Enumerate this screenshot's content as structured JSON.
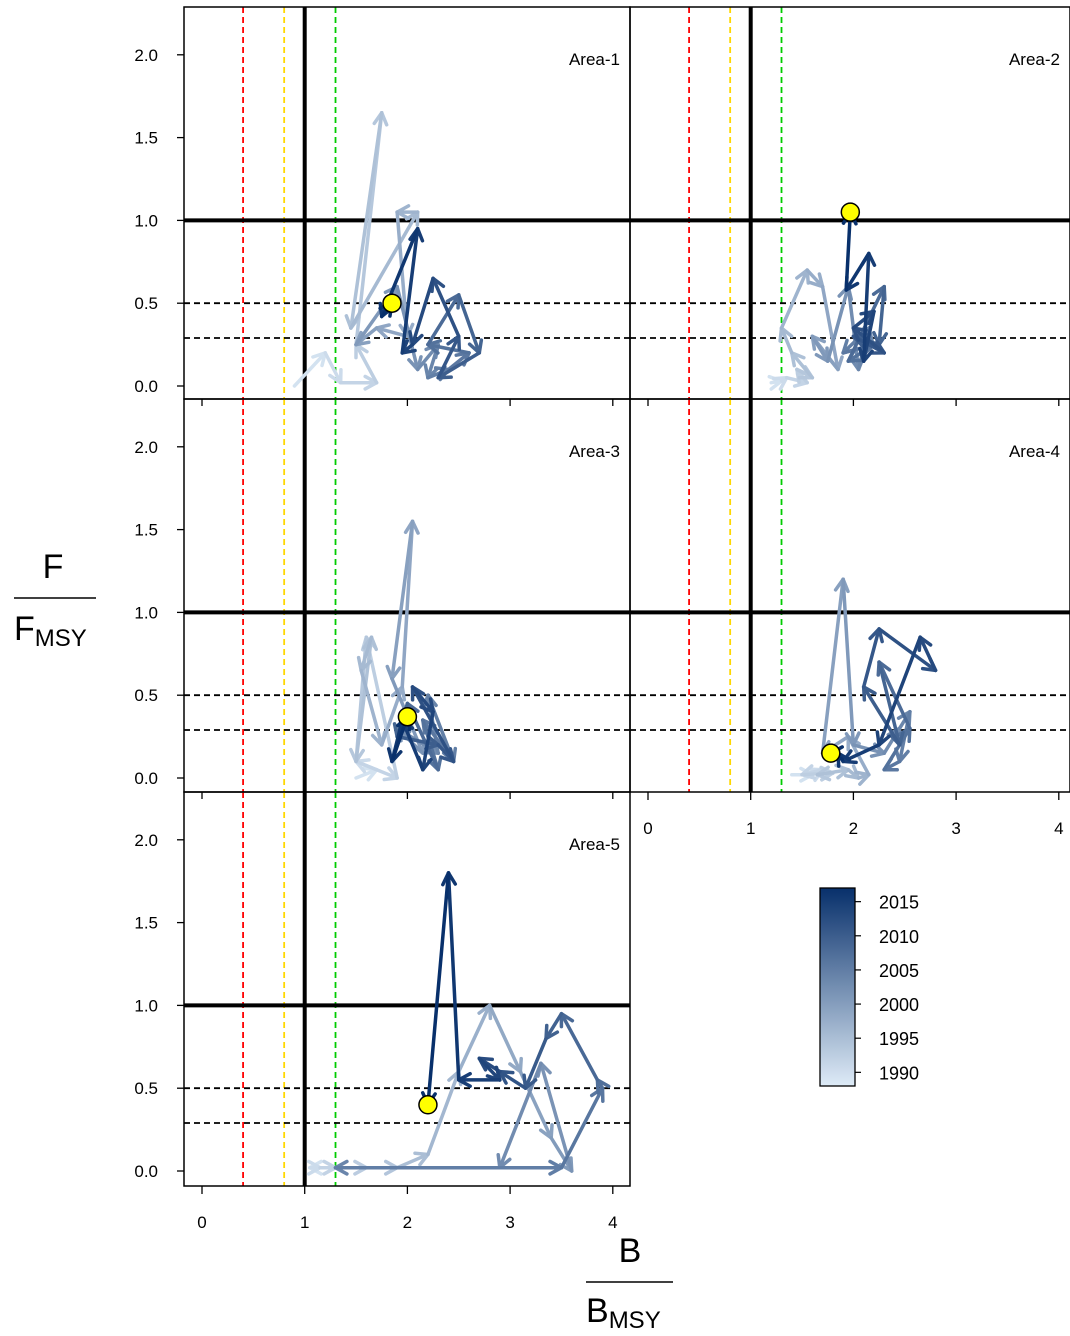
{
  "chart_data": {
    "type": "line",
    "xlabel": "B",
    "xlabel_sub": "MSY",
    "ylabel": "F",
    "ylabel_sub": "MSY",
    "xlim": [
      -0.18,
      4.12
    ],
    "ylim": [
      -0.08,
      2.28
    ],
    "x_ticks": [
      "0",
      "1",
      "2",
      "3",
      "4"
    ],
    "y_ticks": [
      "0.0",
      "0.5",
      "1.0",
      "1.5",
      "2.0"
    ],
    "reference_lines": {
      "vertical": [
        {
          "x": 0.4,
          "color": "#ff0000",
          "style": "dashed"
        },
        {
          "x": 0.8,
          "color": "#ffd700",
          "style": "dashed"
        },
        {
          "x": 1.0,
          "color": "#000000",
          "style": "solid"
        },
        {
          "x": 1.3,
          "color": "#00cc00",
          "style": "dashed"
        }
      ],
      "horizontal": [
        {
          "y": 1.0,
          "color": "#000000",
          "style": "solid"
        },
        {
          "y": 0.5,
          "color": "#000000",
          "style": "dashed"
        },
        {
          "y": 0.29,
          "color": "#000000",
          "style": "dashed"
        }
      ]
    },
    "year_range": [
      1988,
      2017
    ],
    "colorbar": {
      "ticks": [
        "2015",
        "2010",
        "2005",
        "2000",
        "1995",
        "1990"
      ],
      "low_color": "#deebf7",
      "high_color": "#08306b"
    },
    "current_marker_color": "#ffff00",
    "panels": [
      {
        "title": "Area-1",
        "x": [
          0.9,
          1.2,
          1.35,
          1.7,
          1.5,
          1.75,
          1.45,
          2.1,
          1.9,
          2.0,
          1.7,
          1.5,
          1.9,
          2.1,
          2.3,
          2.2,
          2.4,
          2.6,
          2.2,
          2.5,
          2.7,
          2.3,
          2.5,
          2.25,
          2.05,
          1.95,
          2.1,
          1.75,
          1.85
        ],
        "y": [
          0.0,
          0.2,
          0.02,
          0.02,
          0.25,
          1.65,
          0.35,
          1.05,
          1.05,
          0.3,
          0.35,
          0.25,
          0.6,
          0.1,
          0.25,
          0.05,
          0.1,
          0.2,
          0.25,
          0.55,
          0.2,
          0.05,
          0.3,
          0.65,
          0.25,
          0.2,
          0.95,
          0.42,
          0.5
        ]
      },
      {
        "title": "Area-2",
        "x": [
          1.2,
          1.3,
          1.35,
          1.55,
          1.45,
          1.6,
          1.4,
          1.3,
          1.55,
          1.7,
          1.85,
          1.6,
          1.75,
          1.95,
          2.05,
          2.15,
          1.9,
          2.2,
          1.95,
          2.3,
          2.25,
          2.0,
          2.3,
          2.0,
          2.2,
          2.1,
          2.15,
          1.93,
          1.97
        ],
        "y": [
          0.02,
          0.03,
          0.05,
          0.02,
          0.1,
          0.05,
          0.2,
          0.35,
          0.7,
          0.6,
          0.1,
          0.3,
          0.15,
          0.6,
          0.1,
          0.35,
          0.2,
          0.25,
          0.15,
          0.6,
          0.25,
          0.3,
          0.2,
          0.35,
          0.45,
          0.15,
          0.8,
          0.58,
          1.05
        ]
      },
      {
        "title": "Area-3",
        "x": [
          1.5,
          1.7,
          1.5,
          1.9,
          1.6,
          1.5,
          1.65,
          1.55,
          1.75,
          1.95,
          2.05,
          1.85,
          2.15,
          1.9,
          2.3,
          2.2,
          2.45,
          2.15,
          2.3,
          2.0,
          1.9,
          2.3,
          2.45,
          2.05,
          2.25,
          2.15,
          1.95,
          1.85,
          2.0
        ],
        "y": [
          0.0,
          0.05,
          0.1,
          0.0,
          0.85,
          0.1,
          0.85,
          0.65,
          0.2,
          0.55,
          1.55,
          0.6,
          0.15,
          0.3,
          0.15,
          0.5,
          0.1,
          0.35,
          0.05,
          0.45,
          0.25,
          0.2,
          0.1,
          0.55,
          0.4,
          0.05,
          0.35,
          0.1,
          0.37
        ]
      },
      {
        "title": "Area-4",
        "x": [
          1.4,
          1.6,
          1.7,
          1.5,
          1.8,
          1.65,
          1.95,
          2.05,
          2.15,
          1.95,
          1.7,
          1.9,
          2.0,
          2.3,
          2.45,
          2.55,
          2.45,
          2.3,
          2.55,
          2.25,
          2.45,
          2.1,
          2.25,
          2.8,
          2.65,
          2.25,
          1.9,
          1.85,
          1.78
        ],
        "y": [
          0.02,
          0.02,
          0.05,
          0.02,
          0.03,
          0.02,
          0.05,
          0.0,
          0.02,
          0.25,
          0.15,
          1.2,
          0.2,
          0.15,
          0.3,
          0.4,
          0.1,
          0.05,
          0.3,
          0.7,
          0.2,
          0.55,
          0.9,
          0.65,
          0.85,
          0.2,
          0.1,
          0.15,
          0.15
        ]
      },
      {
        "title": "Area-5",
        "x": [
          1.1,
          1.05,
          1.15,
          1.3,
          1.6,
          1.9,
          2.2,
          2.5,
          2.8,
          3.1,
          3.4,
          3.6,
          3.3,
          2.9,
          1.3,
          3.5,
          3.9,
          3.85,
          3.5,
          3.35,
          3.15,
          2.9,
          2.7,
          2.9,
          2.5,
          2.4,
          2.2
        ],
        "y": [
          0.02,
          0.02,
          0.02,
          0.02,
          0.02,
          0.02,
          0.1,
          0.6,
          1.0,
          0.6,
          0.2,
          0.0,
          0.65,
          0.02,
          0.02,
          0.02,
          0.5,
          0.55,
          0.95,
          0.8,
          0.5,
          0.6,
          0.68,
          0.55,
          0.55,
          1.8,
          0.4
        ]
      }
    ]
  }
}
